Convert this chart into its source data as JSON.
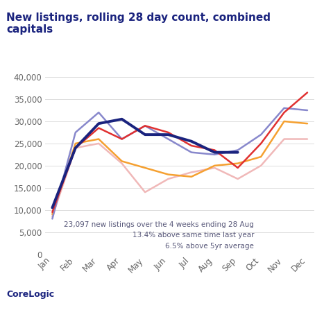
{
  "title": "New listings, rolling 28 day count, combined\ncapitals",
  "title_color": "#1a237e",
  "annotation_line1": "23,097 new listings over the 4 weeks ending 28 Aug",
  "annotation_line2": "13.4% above same time last year",
  "annotation_line3": "6.5% above 5yr average",
  "annotation_color": "#555577",
  "source_label": "CoreLogic",
  "months": [
    "Jan",
    "Feb",
    "Mar",
    "Apr",
    "May",
    "Jun",
    "Jul",
    "Aug",
    "Sep",
    "Oct",
    "Nov",
    "Dec"
  ],
  "series": [
    {
      "name": "current_year",
      "color": "#1a237e",
      "linewidth": 2.8,
      "zorder": 5,
      "values": [
        10500,
        24000,
        29500,
        30500,
        27000,
        27000,
        25500,
        23000,
        23000,
        null,
        null,
        null
      ]
    },
    {
      "name": "last_year",
      "color": "#e03030",
      "linewidth": 1.8,
      "zorder": 4,
      "values": [
        9500,
        24000,
        28500,
        26000,
        29000,
        27500,
        24500,
        23500,
        19500,
        25000,
        32000,
        36500
      ]
    },
    {
      "name": "two_years_ago",
      "color": "#8888cc",
      "linewidth": 1.8,
      "zorder": 3,
      "values": [
        8000,
        27500,
        32000,
        26000,
        29000,
        26000,
        23000,
        22500,
        23500,
        27000,
        33000,
        32500
      ]
    },
    {
      "name": "three_years_ago",
      "color": "#f5a030",
      "linewidth": 1.8,
      "zorder": 2,
      "values": [
        9000,
        25000,
        26000,
        21000,
        19500,
        18000,
        17500,
        20000,
        20500,
        22000,
        30000,
        29500
      ]
    },
    {
      "name": "five_year_avg",
      "color": "#f0b8b8",
      "linewidth": 1.8,
      "zorder": 1,
      "values": [
        8500,
        24000,
        25000,
        20500,
        14000,
        17000,
        18500,
        19500,
        17000,
        20000,
        26000,
        26000
      ]
    }
  ],
  "ylim": [
    0,
    42000
  ],
  "yticks": [
    0,
    5000,
    10000,
    15000,
    20000,
    25000,
    30000,
    35000,
    40000
  ],
  "background_color": "#ffffff"
}
